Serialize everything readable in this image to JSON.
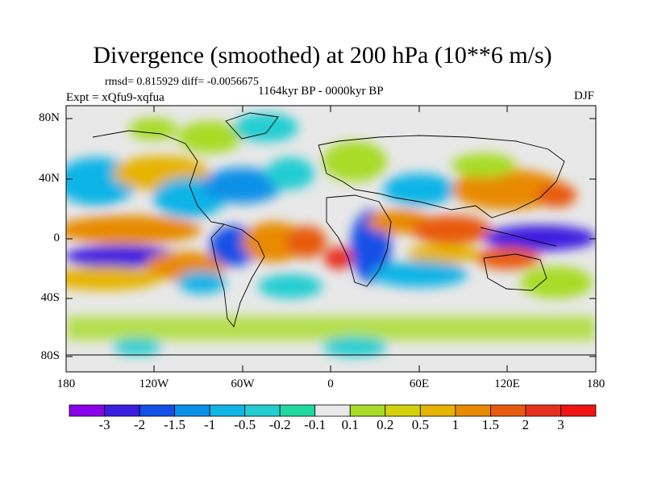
{
  "title": "Divergence (smoothed) at 200 hPa (10**6 m/s)",
  "stats": "rmsd= 0.815929 diff= -0.0056675",
  "experiment": "Expt = xQfu9-xqfua",
  "period": "1164kyr BP - 0000kyr BP",
  "season": "DJF",
  "axes": {
    "y_ticks": [
      "80N",
      "40N",
      "0",
      "40S",
      "80S"
    ],
    "x_ticks": [
      "180",
      "120W",
      "60W",
      "0",
      "60E",
      "120E",
      "180"
    ]
  },
  "colorbar": {
    "labels": [
      "-3",
      "-2",
      "-1.5",
      "-1",
      "-0.5",
      "-0.2",
      "-0.1",
      "0.1",
      "0.2",
      "0.5",
      "1",
      "1.5",
      "2",
      "3"
    ],
    "colors": [
      "#8a00e8",
      "#3c1ee0",
      "#1450e6",
      "#0a90e8",
      "#10b4e6",
      "#22cdd2",
      "#20d8a0",
      "#e8e8e8",
      "#a8dc28",
      "#d2d20a",
      "#e6b400",
      "#e88a00",
      "#e85a10",
      "#e8301e",
      "#f01414"
    ]
  }
}
